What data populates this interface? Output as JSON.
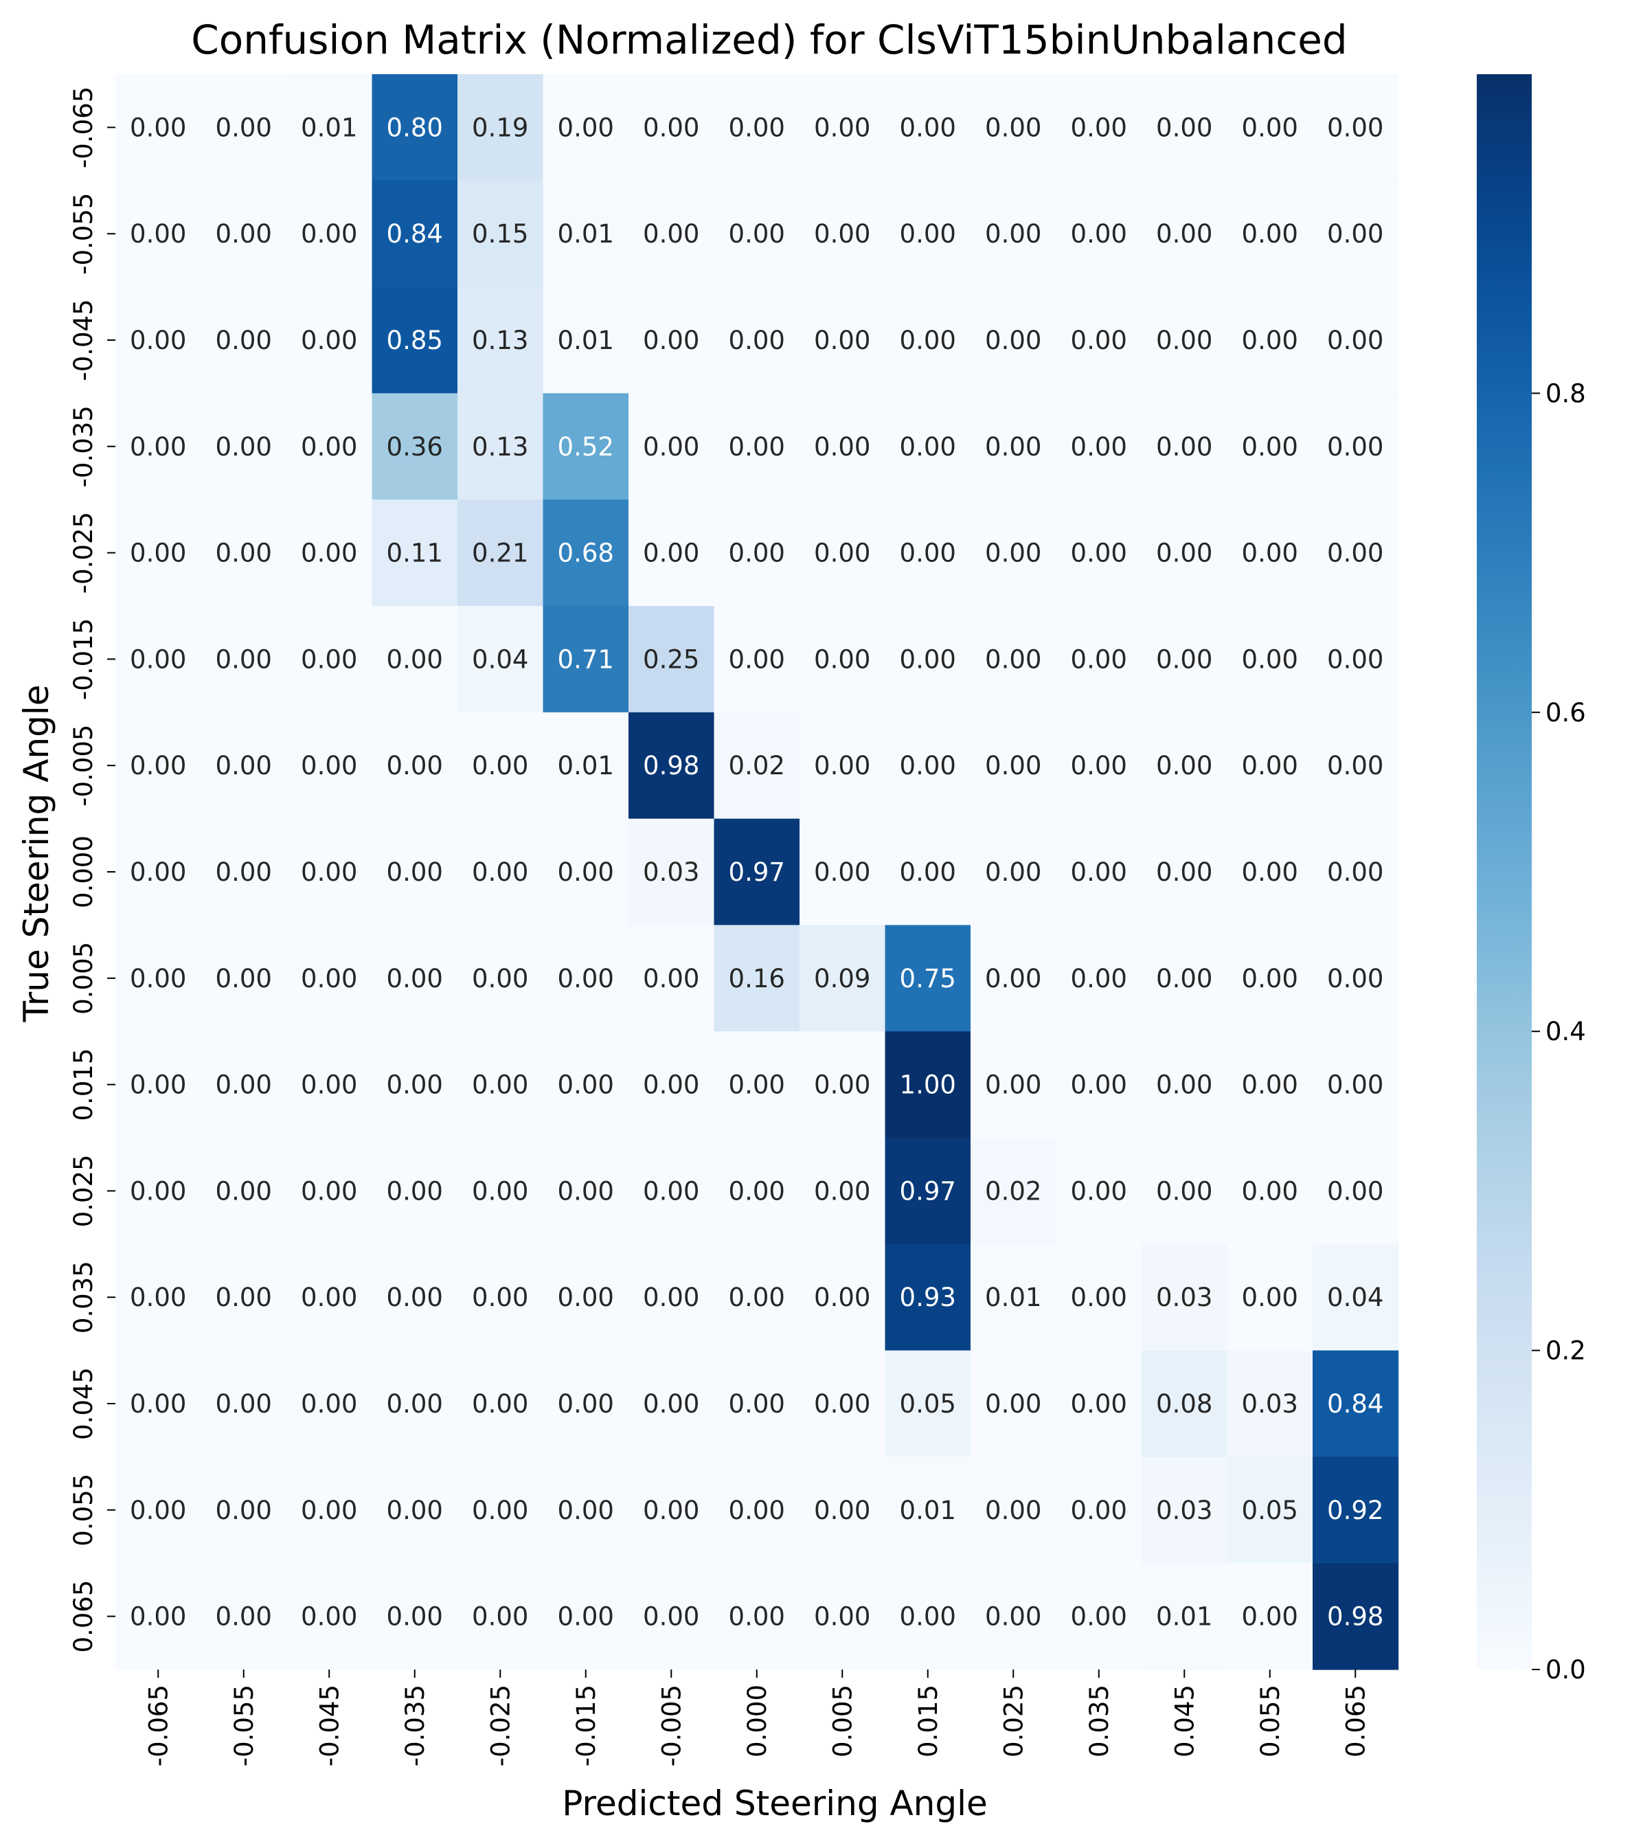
{
  "chart_data": {
    "type": "heatmap",
    "title": "Confusion Matrix (Normalized) for ClsViT15binUnbalanced",
    "xlabel": "Predicted Steering Angle",
    "ylabel": "True Steering Angle",
    "x_categories": [
      "-0.065",
      "-0.055",
      "-0.045",
      "-0.035",
      "-0.025",
      "-0.015",
      "-0.005",
      "0.000",
      "0.005",
      "0.015",
      "0.025",
      "0.035",
      "0.045",
      "0.055",
      "0.065"
    ],
    "y_categories": [
      "-0.065",
      "-0.055",
      "-0.045",
      "-0.035",
      "-0.025",
      "-0.015",
      "-0.005",
      "0.000",
      "0.005",
      "0.015",
      "0.025",
      "0.035",
      "0.045",
      "0.055",
      "0.065"
    ],
    "values": [
      [
        0.0,
        0.0,
        0.01,
        0.8,
        0.19,
        0.0,
        0.0,
        0.0,
        0.0,
        0.0,
        0.0,
        0.0,
        0.0,
        0.0,
        0.0
      ],
      [
        0.0,
        0.0,
        0.0,
        0.84,
        0.15,
        0.01,
        0.0,
        0.0,
        0.0,
        0.0,
        0.0,
        0.0,
        0.0,
        0.0,
        0.0
      ],
      [
        0.0,
        0.0,
        0.0,
        0.85,
        0.13,
        0.01,
        0.0,
        0.0,
        0.0,
        0.0,
        0.0,
        0.0,
        0.0,
        0.0,
        0.0
      ],
      [
        0.0,
        0.0,
        0.0,
        0.36,
        0.13,
        0.52,
        0.0,
        0.0,
        0.0,
        0.0,
        0.0,
        0.0,
        0.0,
        0.0,
        0.0
      ],
      [
        0.0,
        0.0,
        0.0,
        0.11,
        0.21,
        0.68,
        0.0,
        0.0,
        0.0,
        0.0,
        0.0,
        0.0,
        0.0,
        0.0,
        0.0
      ],
      [
        0.0,
        0.0,
        0.0,
        0.0,
        0.04,
        0.71,
        0.25,
        0.0,
        0.0,
        0.0,
        0.0,
        0.0,
        0.0,
        0.0,
        0.0
      ],
      [
        0.0,
        0.0,
        0.0,
        0.0,
        0.0,
        0.01,
        0.98,
        0.02,
        0.0,
        0.0,
        0.0,
        0.0,
        0.0,
        0.0,
        0.0
      ],
      [
        0.0,
        0.0,
        0.0,
        0.0,
        0.0,
        0.0,
        0.03,
        0.97,
        0.0,
        0.0,
        0.0,
        0.0,
        0.0,
        0.0,
        0.0
      ],
      [
        0.0,
        0.0,
        0.0,
        0.0,
        0.0,
        0.0,
        0.0,
        0.16,
        0.09,
        0.75,
        0.0,
        0.0,
        0.0,
        0.0,
        0.0
      ],
      [
        0.0,
        0.0,
        0.0,
        0.0,
        0.0,
        0.0,
        0.0,
        0.0,
        0.0,
        1.0,
        0.0,
        0.0,
        0.0,
        0.0,
        0.0
      ],
      [
        0.0,
        0.0,
        0.0,
        0.0,
        0.0,
        0.0,
        0.0,
        0.0,
        0.0,
        0.97,
        0.02,
        0.0,
        0.0,
        0.0,
        0.0
      ],
      [
        0.0,
        0.0,
        0.0,
        0.0,
        0.0,
        0.0,
        0.0,
        0.0,
        0.0,
        0.93,
        0.01,
        0.0,
        0.03,
        0.0,
        0.04
      ],
      [
        0.0,
        0.0,
        0.0,
        0.0,
        0.0,
        0.0,
        0.0,
        0.0,
        0.0,
        0.05,
        0.0,
        0.0,
        0.08,
        0.03,
        0.84
      ],
      [
        0.0,
        0.0,
        0.0,
        0.0,
        0.0,
        0.0,
        0.0,
        0.0,
        0.0,
        0.01,
        0.0,
        0.0,
        0.03,
        0.05,
        0.92
      ],
      [
        0.0,
        0.0,
        0.0,
        0.0,
        0.0,
        0.0,
        0.0,
        0.0,
        0.0,
        0.0,
        0.0,
        0.0,
        0.01,
        0.0,
        0.98
      ]
    ],
    "colorbar": {
      "colormap": "Blues",
      "range": [
        0,
        1.0
      ],
      "ticks": [
        0.0,
        0.2,
        0.4,
        0.6,
        0.8
      ],
      "tick_labels": [
        "0.0",
        "0.2",
        "0.4",
        "0.6",
        "0.8"
      ]
    },
    "colors": {
      "low": "#f7fbff",
      "high": "#08306b",
      "text_dark": "#262626",
      "text_light": "#ffffff"
    },
    "grid": false,
    "legend": "colorbar-right"
  }
}
